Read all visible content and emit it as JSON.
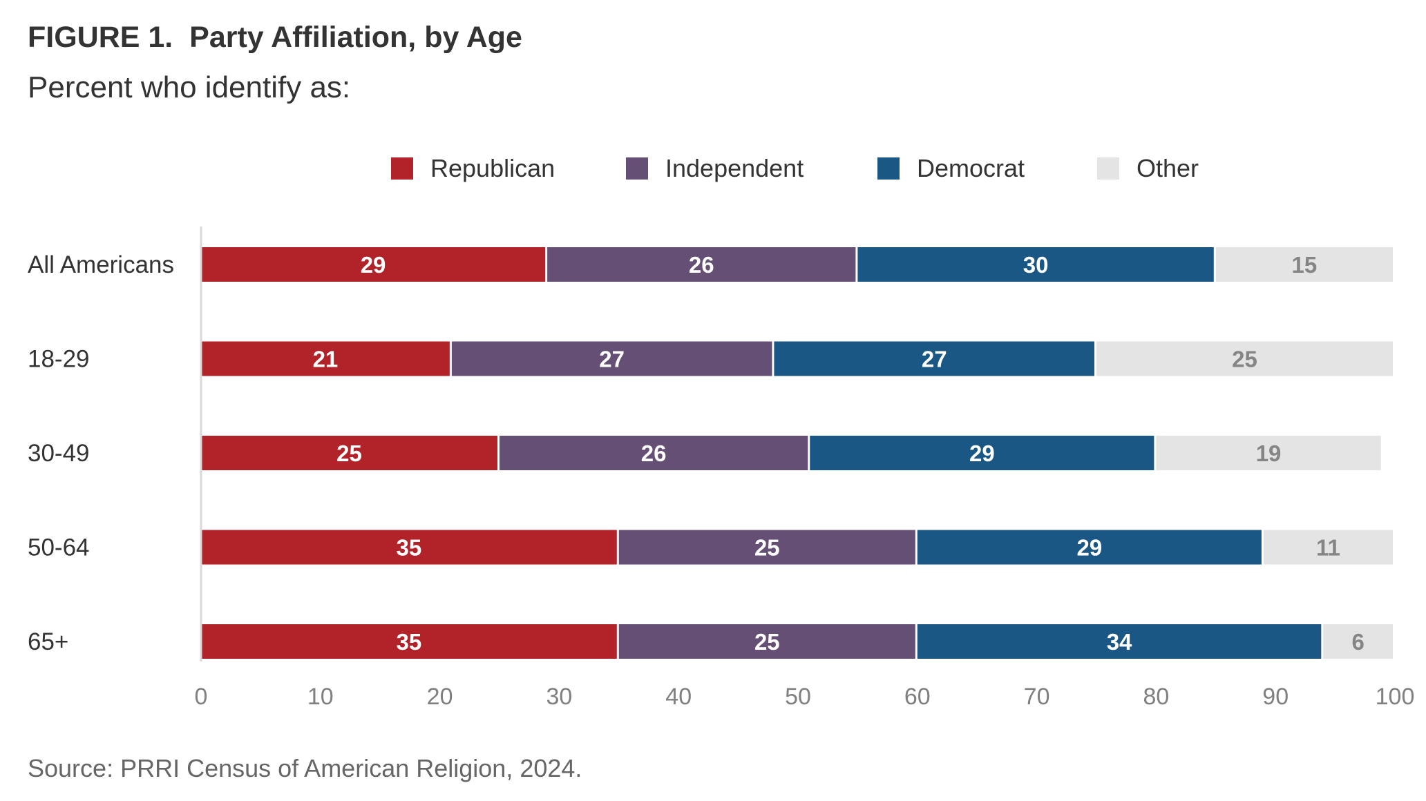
{
  "title": "FIGURE 1.  Party Affiliation, by Age",
  "subtitle": "Percent who identify as:",
  "source": "Source: PRRI Census of American Religion, 2024.",
  "chart_data": {
    "type": "bar",
    "orientation": "horizontal",
    "stacked": true,
    "categories": [
      "All Americans",
      "18-29",
      "30-49",
      "50-64",
      "65+"
    ],
    "series": [
      {
        "name": "Republican",
        "color": "#b22229",
        "label_color": "#ffffff",
        "values": [
          29,
          21,
          25,
          35,
          35
        ]
      },
      {
        "name": "Independent",
        "color": "#664f74",
        "label_color": "#ffffff",
        "values": [
          26,
          27,
          26,
          25,
          25
        ]
      },
      {
        "name": "Democrat",
        "color": "#1b5784",
        "label_color": "#ffffff",
        "values": [
          30,
          27,
          29,
          29,
          34
        ]
      },
      {
        "name": "Other",
        "color": "#e4e4e5",
        "label_color": "#858585",
        "values": [
          15,
          25,
          19,
          11,
          6
        ]
      }
    ],
    "xlim": [
      0,
      100
    ],
    "xticks": [
      "0",
      "10",
      "20",
      "30",
      "40",
      "50",
      "60",
      "70",
      "80",
      "90",
      "100"
    ],
    "xlabel": "",
    "ylabel": "",
    "grid": false,
    "legend_position": "top"
  }
}
